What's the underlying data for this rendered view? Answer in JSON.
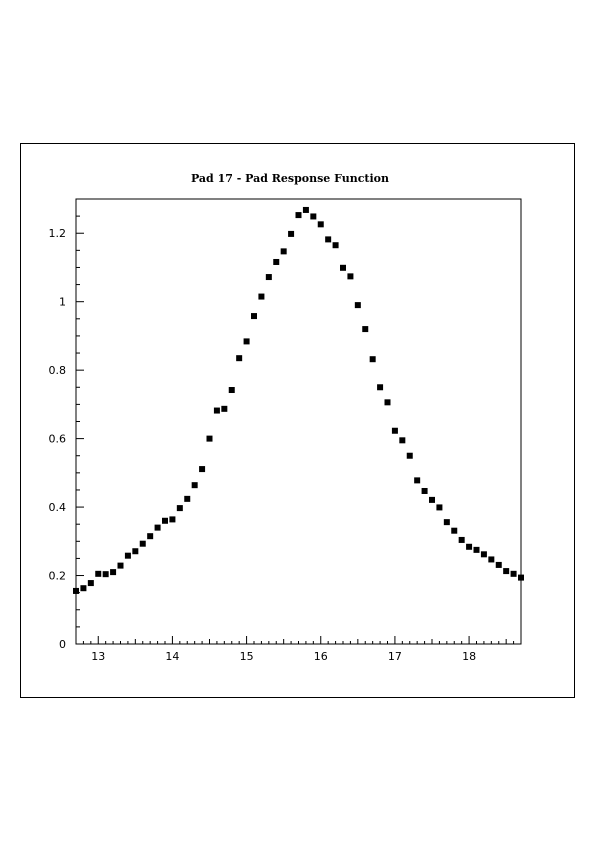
{
  "chart_data": {
    "type": "scatter",
    "title": "Pad 17 - Pad Response Function",
    "xlabel": "",
    "ylabel": "",
    "xlim": [
      12.7,
      18.7
    ],
    "ylim": [
      0,
      1.3
    ],
    "x_ticks": [
      13,
      14,
      15,
      16,
      17,
      18
    ],
    "x_tick_labels": [
      "13",
      "14",
      "15",
      "16",
      "17",
      "18"
    ],
    "y_ticks": [
      0,
      0.2,
      0.4,
      0.6,
      0.8,
      1,
      1.2
    ],
    "y_tick_labels": [
      "0",
      "0.2",
      "0.4",
      "0.6",
      "0.8",
      "1",
      "1.2"
    ],
    "grid": false,
    "marker_color": "#000000",
    "points": [
      [
        12.7,
        0.155
      ],
      [
        12.8,
        0.163
      ],
      [
        12.9,
        0.178
      ],
      [
        13.0,
        0.205
      ],
      [
        13.1,
        0.204
      ],
      [
        13.2,
        0.21
      ],
      [
        13.3,
        0.229
      ],
      [
        13.4,
        0.258
      ],
      [
        13.5,
        0.271
      ],
      [
        13.6,
        0.293
      ],
      [
        13.7,
        0.315
      ],
      [
        13.8,
        0.34
      ],
      [
        13.9,
        0.36
      ],
      [
        14.0,
        0.364
      ],
      [
        14.1,
        0.397
      ],
      [
        14.2,
        0.424
      ],
      [
        14.3,
        0.464
      ],
      [
        14.4,
        0.511
      ],
      [
        14.5,
        0.6
      ],
      [
        14.6,
        0.682
      ],
      [
        14.7,
        0.687
      ],
      [
        14.8,
        0.742
      ],
      [
        14.9,
        0.835
      ],
      [
        15.0,
        0.884
      ],
      [
        15.1,
        0.958
      ],
      [
        15.2,
        1.015
      ],
      [
        15.3,
        1.072
      ],
      [
        15.4,
        1.116
      ],
      [
        15.5,
        1.147
      ],
      [
        15.6,
        1.198
      ],
      [
        15.7,
        1.253
      ],
      [
        15.8,
        1.268
      ],
      [
        15.9,
        1.249
      ],
      [
        16.0,
        1.226
      ],
      [
        16.1,
        1.182
      ],
      [
        16.2,
        1.165
      ],
      [
        16.3,
        1.099
      ],
      [
        16.4,
        1.074
      ],
      [
        16.5,
        0.99
      ],
      [
        16.6,
        0.92
      ],
      [
        16.7,
        0.832
      ],
      [
        16.8,
        0.75
      ],
      [
        16.9,
        0.706
      ],
      [
        17.0,
        0.623
      ],
      [
        17.1,
        0.595
      ],
      [
        17.2,
        0.55
      ],
      [
        17.3,
        0.478
      ],
      [
        17.4,
        0.447
      ],
      [
        17.5,
        0.421
      ],
      [
        17.6,
        0.399
      ],
      [
        17.7,
        0.356
      ],
      [
        17.8,
        0.331
      ],
      [
        17.9,
        0.304
      ],
      [
        18.0,
        0.284
      ],
      [
        18.1,
        0.275
      ],
      [
        18.2,
        0.262
      ],
      [
        18.3,
        0.247
      ],
      [
        18.4,
        0.231
      ],
      [
        18.5,
        0.213
      ],
      [
        18.6,
        0.205
      ],
      [
        18.7,
        0.194
      ]
    ]
  }
}
